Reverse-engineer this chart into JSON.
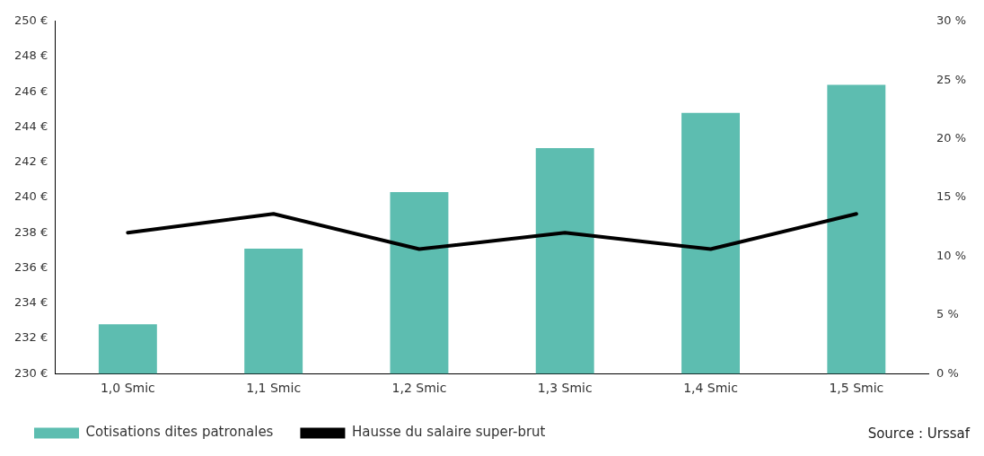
{
  "chart_data": {
    "type": "bar",
    "categories": [
      "1,0 Smic",
      "1,1 Smic",
      "1,2 Smic",
      "1,3 Smic",
      "1,4 Smic",
      "1,5 Smic"
    ],
    "series": [
      {
        "name": "Cotisations dites patronales",
        "color": "#5dbdb0",
        "values": [
          232.8,
          237.1,
          240.3,
          242.8,
          244.8,
          246.4
        ]
      },
      {
        "name": "Hausse du salaire super-brut",
        "type": "line",
        "axis": "y2",
        "color": "#000000",
        "values": [
          12.0,
          13.6,
          10.6,
          12.0,
          10.6,
          13.6
        ]
      }
    ],
    "ylim": [
      230,
      250
    ],
    "yticks": [
      {
        "value": 230,
        "label": "230 €"
      },
      {
        "value": 232,
        "label": "232 €"
      },
      {
        "value": 234,
        "label": "234 €"
      },
      {
        "value": 236,
        "label": "236 €"
      },
      {
        "value": 238,
        "label": "238 €"
      },
      {
        "value": 240,
        "label": "240 €"
      },
      {
        "value": 242,
        "label": "242 €"
      },
      {
        "value": 244,
        "label": "244 €"
      },
      {
        "value": 246,
        "label": "246 €"
      },
      {
        "value": 248,
        "label": "248 €"
      },
      {
        "value": 250,
        "label": "250 €"
      }
    ],
    "y2lim": [
      0,
      30
    ],
    "y2ticks": [
      {
        "value": 0,
        "label": "0 %"
      },
      {
        "value": 5,
        "label": "5 %"
      },
      {
        "value": 10,
        "label": "10 %"
      },
      {
        "value": 15,
        "label": "15 %"
      },
      {
        "value": 20,
        "label": "20 %"
      },
      {
        "value": 25,
        "label": "25 %"
      },
      {
        "value": 30,
        "label": "30 %"
      }
    ],
    "grid": false,
    "legend": "bottom",
    "marker": "none",
    "line_style": "solid",
    "annotations": [
      "Source : Urssaf"
    ]
  }
}
